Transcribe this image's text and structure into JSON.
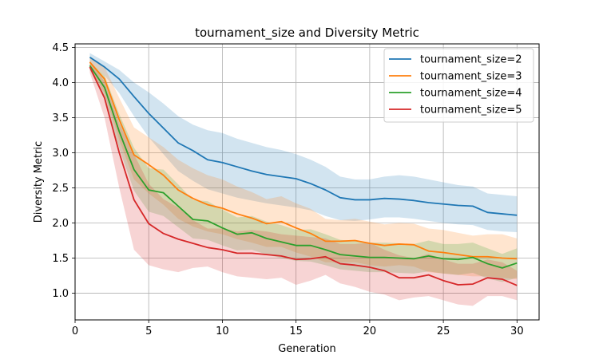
{
  "chart_data": {
    "type": "line",
    "title": "tournament_size and Diversity Metric",
    "xlabel": "Generation",
    "ylabel": "Diversity Metric",
    "xlim": [
      0,
      31.5
    ],
    "ylim": [
      0.62,
      4.55
    ],
    "xticks": [
      0,
      5,
      10,
      15,
      20,
      25,
      30
    ],
    "yticks": [
      1.0,
      1.5,
      2.0,
      2.5,
      3.0,
      3.5,
      4.0,
      4.5
    ],
    "grid": true,
    "legend_position": "top-right",
    "x": [
      1,
      2,
      3,
      4,
      5,
      6,
      7,
      8,
      9,
      10,
      11,
      12,
      13,
      14,
      15,
      16,
      17,
      18,
      19,
      20,
      21,
      22,
      23,
      24,
      25,
      26,
      27,
      28,
      29,
      30
    ],
    "series": [
      {
        "name": "tournament_size=2",
        "color": "#1f77b4",
        "values": [
          4.36,
          4.22,
          4.05,
          3.8,
          3.56,
          3.35,
          3.14,
          3.03,
          2.9,
          2.86,
          2.8,
          2.74,
          2.69,
          2.66,
          2.63,
          2.56,
          2.47,
          2.36,
          2.33,
          2.33,
          2.35,
          2.34,
          2.32,
          2.29,
          2.27,
          2.25,
          2.24,
          2.15,
          2.13,
          2.11
        ],
        "lower": [
          4.3,
          4.1,
          3.85,
          3.52,
          3.22,
          2.98,
          2.74,
          2.6,
          2.48,
          2.42,
          2.36,
          2.32,
          2.28,
          2.25,
          2.22,
          2.18,
          2.1,
          2.04,
          2.03,
          2.05,
          2.08,
          2.08,
          2.06,
          2.03,
          2.0,
          1.98,
          1.97,
          1.9,
          1.88,
          1.87
        ],
        "upper": [
          4.42,
          4.3,
          4.18,
          4.0,
          3.86,
          3.7,
          3.52,
          3.4,
          3.32,
          3.28,
          3.2,
          3.14,
          3.08,
          3.04,
          2.98,
          2.9,
          2.8,
          2.66,
          2.62,
          2.62,
          2.66,
          2.68,
          2.66,
          2.62,
          2.58,
          2.54,
          2.52,
          2.42,
          2.4,
          2.38
        ]
      },
      {
        "name": "tournament_size=3",
        "color": "#ff7f0e",
        "values": [
          4.29,
          4.05,
          3.47,
          2.97,
          2.83,
          2.68,
          2.47,
          2.35,
          2.26,
          2.21,
          2.13,
          2.07,
          1.99,
          2.02,
          1.93,
          1.85,
          1.74,
          1.74,
          1.75,
          1.71,
          1.68,
          1.7,
          1.69,
          1.6,
          1.58,
          1.55,
          1.52,
          1.52,
          1.5,
          1.49
        ],
        "lower": [
          4.22,
          3.85,
          3.18,
          2.62,
          2.42,
          2.26,
          2.06,
          1.95,
          1.88,
          1.84,
          1.77,
          1.72,
          1.66,
          1.66,
          1.58,
          1.52,
          1.44,
          1.44,
          1.44,
          1.4,
          1.38,
          1.4,
          1.38,
          1.3,
          1.28,
          1.26,
          1.24,
          1.24,
          1.22,
          1.2
        ],
        "upper": [
          4.36,
          4.22,
          3.78,
          3.36,
          3.22,
          3.08,
          2.9,
          2.78,
          2.68,
          2.62,
          2.52,
          2.44,
          2.34,
          2.38,
          2.28,
          2.2,
          2.06,
          2.04,
          2.06,
          2.02,
          1.98,
          2.0,
          1.99,
          1.92,
          1.9,
          1.86,
          1.82,
          1.84,
          1.84,
          1.78
        ]
      },
      {
        "name": "tournament_size=4",
        "color": "#2ca02c",
        "values": [
          4.24,
          3.93,
          3.3,
          2.76,
          2.47,
          2.43,
          2.24,
          2.05,
          2.03,
          1.93,
          1.84,
          1.86,
          1.78,
          1.73,
          1.68,
          1.68,
          1.62,
          1.55,
          1.53,
          1.51,
          1.51,
          1.5,
          1.49,
          1.53,
          1.49,
          1.48,
          1.51,
          1.42,
          1.36,
          1.43
        ],
        "lower": [
          4.18,
          3.76,
          3.06,
          2.46,
          2.16,
          2.1,
          1.94,
          1.78,
          1.76,
          1.68,
          1.61,
          1.62,
          1.55,
          1.5,
          1.46,
          1.45,
          1.4,
          1.34,
          1.32,
          1.3,
          1.3,
          1.29,
          1.28,
          1.31,
          1.28,
          1.26,
          1.29,
          1.21,
          1.16,
          1.22
        ],
        "upper": [
          4.3,
          4.1,
          3.55,
          3.07,
          2.78,
          2.76,
          2.55,
          2.33,
          2.31,
          2.19,
          2.08,
          2.1,
          2.02,
          1.97,
          1.9,
          1.91,
          1.84,
          1.76,
          1.74,
          1.72,
          1.72,
          1.71,
          1.7,
          1.75,
          1.7,
          1.7,
          1.72,
          1.64,
          1.56,
          1.64
        ]
      },
      {
        "name": "tournament_size=5",
        "color": "#d62728",
        "values": [
          4.22,
          3.78,
          3.0,
          2.33,
          1.99,
          1.85,
          1.77,
          1.71,
          1.65,
          1.62,
          1.57,
          1.57,
          1.55,
          1.53,
          1.48,
          1.49,
          1.52,
          1.42,
          1.4,
          1.37,
          1.32,
          1.22,
          1.22,
          1.26,
          1.18,
          1.12,
          1.13,
          1.22,
          1.2,
          1.11
        ],
        "lower": [
          4.14,
          3.5,
          2.5,
          1.62,
          1.4,
          1.34,
          1.3,
          1.36,
          1.38,
          1.3,
          1.24,
          1.22,
          1.2,
          1.22,
          1.12,
          1.18,
          1.26,
          1.14,
          1.09,
          1.02,
          0.98,
          0.9,
          0.94,
          0.96,
          0.9,
          0.84,
          0.82,
          0.96,
          0.96,
          0.9
        ],
        "upper": [
          4.3,
          4.02,
          3.42,
          2.98,
          2.56,
          2.34,
          2.22,
          2.04,
          1.92,
          1.92,
          1.88,
          1.9,
          1.88,
          1.84,
          1.82,
          1.8,
          1.78,
          1.7,
          1.7,
          1.72,
          1.62,
          1.54,
          1.5,
          1.56,
          1.48,
          1.42,
          1.42,
          1.48,
          1.44,
          1.32
        ]
      }
    ]
  }
}
